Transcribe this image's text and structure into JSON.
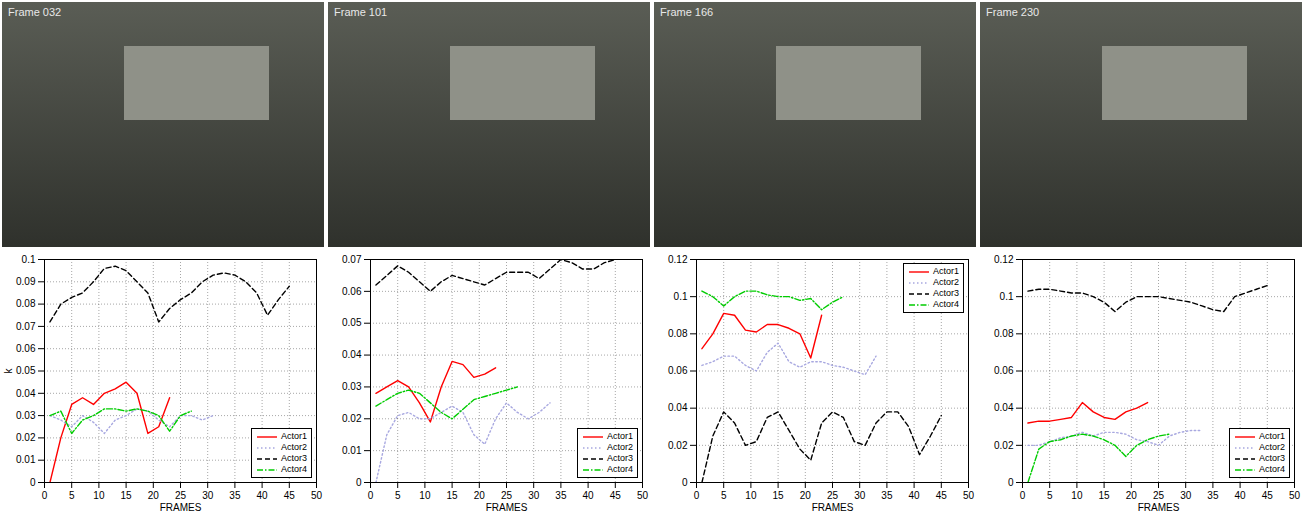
{
  "photos": [
    {
      "label": "Frame 032"
    },
    {
      "label": "Frame 101"
    },
    {
      "label": "Frame 166"
    },
    {
      "label": "Frame 230"
    }
  ],
  "chart_data": [
    {
      "type": "line",
      "ylabel": "k",
      "xlabel": "FRAMES",
      "x": [
        1,
        3,
        5,
        7,
        9,
        11,
        13,
        15,
        17,
        19,
        21,
        23,
        25,
        27,
        29,
        31,
        33,
        35,
        37,
        39,
        41,
        43,
        45
      ],
      "xlim": [
        0,
        50
      ],
      "xticks": [
        0,
        5,
        10,
        15,
        20,
        25,
        30,
        35,
        40,
        45,
        50
      ],
      "ylim": [
        0,
        0.1
      ],
      "yticks": [
        0,
        0.01,
        0.02,
        0.03,
        0.04,
        0.05,
        0.06,
        0.07,
        0.08,
        0.09,
        0.1
      ],
      "grid": true,
      "legend": "lower right",
      "series": [
        {
          "name": "Actor1",
          "color": "#ff0000",
          "line_style": "solid",
          "values": [
            0.0,
            0.02,
            0.035,
            0.038,
            0.035,
            0.04,
            0.042,
            0.045,
            0.04,
            0.022,
            0.025,
            0.038,
            null,
            null,
            null,
            null,
            null,
            null,
            null,
            null,
            null,
            null,
            null
          ]
        },
        {
          "name": "Actor2",
          "color": "#a8a8e0",
          "line_style": "dotted",
          "values": [
            0.03,
            0.028,
            0.025,
            0.03,
            0.027,
            0.022,
            0.028,
            0.03,
            0.033,
            0.032,
            0.028,
            0.025,
            0.03,
            0.03,
            0.028,
            0.03,
            null,
            null,
            null,
            null,
            null,
            null,
            null
          ]
        },
        {
          "name": "Actor3",
          "color": "#000000",
          "line_style": "dashed",
          "values": [
            0.072,
            0.08,
            0.083,
            0.085,
            0.09,
            0.096,
            0.097,
            0.095,
            0.09,
            0.085,
            0.072,
            0.078,
            0.082,
            0.085,
            0.09,
            0.093,
            0.094,
            0.093,
            0.09,
            0.085,
            0.075,
            0.082,
            0.088
          ]
        },
        {
          "name": "Actor4",
          "color": "#00cc00",
          "line_style": "dashdot",
          "values": [
            0.03,
            0.032,
            0.022,
            0.028,
            0.03,
            0.033,
            0.033,
            0.032,
            0.033,
            0.032,
            0.03,
            0.023,
            0.03,
            0.032,
            null,
            null,
            null,
            null,
            null,
            null,
            null,
            null,
            null
          ]
        }
      ]
    },
    {
      "type": "line",
      "xlabel": "FRAMES",
      "x": [
        1,
        3,
        5,
        7,
        9,
        11,
        13,
        15,
        17,
        19,
        21,
        23,
        25,
        27,
        29,
        31,
        33,
        35,
        37,
        39,
        41,
        43,
        45
      ],
      "xlim": [
        0,
        50
      ],
      "xticks": [
        0,
        5,
        10,
        15,
        20,
        25,
        30,
        35,
        40,
        45,
        50
      ],
      "ylim": [
        0,
        0.07
      ],
      "yticks": [
        0,
        0.01,
        0.02,
        0.03,
        0.04,
        0.05,
        0.06,
        0.07
      ],
      "grid": true,
      "legend": "lower right",
      "series": [
        {
          "name": "Actor1",
          "color": "#ff0000",
          "line_style": "solid",
          "values": [
            0.028,
            0.03,
            0.032,
            0.03,
            0.025,
            0.019,
            0.03,
            0.038,
            0.037,
            0.033,
            0.034,
            0.036,
            null,
            null,
            null,
            null,
            null,
            null,
            null,
            null,
            null,
            null,
            null
          ]
        },
        {
          "name": "Actor2",
          "color": "#a8a8e0",
          "line_style": "dotted",
          "values": [
            0.0,
            0.015,
            0.021,
            0.022,
            0.02,
            0.02,
            0.022,
            0.024,
            0.022,
            0.015,
            0.012,
            0.02,
            0.025,
            0.022,
            0.02,
            0.022,
            0.025,
            null,
            null,
            null,
            null,
            null,
            null
          ]
        },
        {
          "name": "Actor3",
          "color": "#000000",
          "line_style": "dashed",
          "values": [
            0.062,
            0.065,
            0.068,
            0.066,
            0.063,
            0.06,
            0.063,
            0.065,
            0.064,
            0.063,
            0.062,
            0.064,
            0.066,
            0.066,
            0.066,
            0.064,
            0.067,
            0.07,
            0.069,
            0.067,
            0.067,
            0.069,
            0.07
          ]
        },
        {
          "name": "Actor4",
          "color": "#00cc00",
          "line_style": "dashdot",
          "values": [
            0.024,
            0.026,
            0.028,
            0.029,
            0.028,
            0.025,
            0.022,
            0.02,
            0.023,
            0.026,
            0.027,
            0.028,
            0.029,
            0.03,
            null,
            null,
            null,
            null,
            null,
            null,
            null,
            null,
            null
          ]
        }
      ]
    },
    {
      "type": "line",
      "xlabel": "FRAMES",
      "x": [
        1,
        3,
        5,
        7,
        9,
        11,
        13,
        15,
        17,
        19,
        21,
        23,
        25,
        27,
        29,
        31,
        33,
        35,
        37,
        39,
        41,
        43,
        45
      ],
      "xlim": [
        0,
        50
      ],
      "xticks": [
        0,
        5,
        10,
        15,
        20,
        25,
        30,
        35,
        40,
        45,
        50
      ],
      "ylim": [
        0,
        0.12
      ],
      "yticks": [
        0,
        0.02,
        0.04,
        0.06,
        0.08,
        0.1,
        0.12
      ],
      "grid": true,
      "legend": "upper right",
      "series": [
        {
          "name": "Actor1",
          "color": "#ff0000",
          "line_style": "solid",
          "values": [
            0.072,
            0.08,
            0.091,
            0.09,
            0.082,
            0.081,
            0.085,
            0.085,
            0.083,
            0.08,
            0.067,
            0.09,
            null,
            null,
            null,
            null,
            null,
            null,
            null,
            null,
            null,
            null,
            null
          ]
        },
        {
          "name": "Actor2",
          "color": "#a8a8e0",
          "line_style": "dotted",
          "values": [
            0.063,
            0.065,
            0.068,
            0.068,
            0.063,
            0.06,
            0.07,
            0.075,
            0.065,
            0.062,
            0.065,
            0.065,
            0.063,
            0.062,
            0.06,
            0.058,
            0.068,
            null,
            null,
            null,
            null,
            null,
            null
          ]
        },
        {
          "name": "Actor3",
          "color": "#000000",
          "line_style": "dashed",
          "values": [
            0.0,
            0.025,
            0.038,
            0.032,
            0.02,
            0.022,
            0.035,
            0.038,
            0.028,
            0.018,
            0.012,
            0.032,
            0.038,
            0.035,
            0.022,
            0.02,
            0.032,
            0.038,
            0.038,
            0.03,
            0.015,
            0.025,
            0.036
          ]
        },
        {
          "name": "Actor4",
          "color": "#00cc00",
          "line_style": "dashdot",
          "values": [
            0.103,
            0.1,
            0.095,
            0.1,
            0.103,
            0.103,
            0.101,
            0.1,
            0.1,
            0.098,
            0.099,
            0.093,
            0.097,
            0.1,
            null,
            null,
            null,
            null,
            null,
            null,
            null,
            null,
            null
          ]
        }
      ]
    },
    {
      "type": "line",
      "xlabel": "FRAMES",
      "x": [
        1,
        3,
        5,
        7,
        9,
        11,
        13,
        15,
        17,
        19,
        21,
        23,
        25,
        27,
        29,
        31,
        33,
        35,
        37,
        39,
        41,
        43,
        45
      ],
      "xlim": [
        0,
        50
      ],
      "xticks": [
        0,
        5,
        10,
        15,
        20,
        25,
        30,
        35,
        40,
        45,
        50
      ],
      "ylim": [
        0,
        0.12
      ],
      "yticks": [
        0,
        0.02,
        0.04,
        0.06,
        0.08,
        0.1,
        0.12
      ],
      "grid": true,
      "legend": "lower right",
      "series": [
        {
          "name": "Actor1",
          "color": "#ff0000",
          "line_style": "solid",
          "values": [
            0.032,
            0.033,
            0.033,
            0.034,
            0.035,
            0.043,
            0.038,
            0.035,
            0.034,
            0.038,
            0.04,
            0.043,
            null,
            null,
            null,
            null,
            null,
            null,
            null,
            null,
            null,
            null,
            null
          ]
        },
        {
          "name": "Actor2",
          "color": "#a8a8e0",
          "line_style": "dotted",
          "values": [
            0.02,
            0.02,
            0.022,
            0.024,
            0.025,
            0.027,
            0.025,
            0.027,
            0.027,
            0.026,
            0.023,
            0.022,
            0.02,
            0.025,
            0.027,
            0.028,
            0.028,
            null,
            null,
            null,
            null,
            null,
            null
          ]
        },
        {
          "name": "Actor3",
          "color": "#000000",
          "line_style": "dashed",
          "values": [
            0.103,
            0.104,
            0.104,
            0.103,
            0.102,
            0.102,
            0.1,
            0.097,
            0.092,
            0.097,
            0.1,
            0.1,
            0.1,
            0.099,
            0.098,
            0.097,
            0.095,
            0.093,
            0.092,
            0.1,
            0.102,
            0.104,
            0.106
          ]
        },
        {
          "name": "Actor4",
          "color": "#00cc00",
          "line_style": "dashdot",
          "values": [
            0.0,
            0.018,
            0.022,
            0.023,
            0.025,
            0.026,
            0.025,
            0.023,
            0.02,
            0.014,
            0.02,
            0.023,
            0.025,
            0.026,
            null,
            null,
            null,
            null,
            null,
            null,
            null,
            null,
            null
          ]
        }
      ]
    }
  ]
}
